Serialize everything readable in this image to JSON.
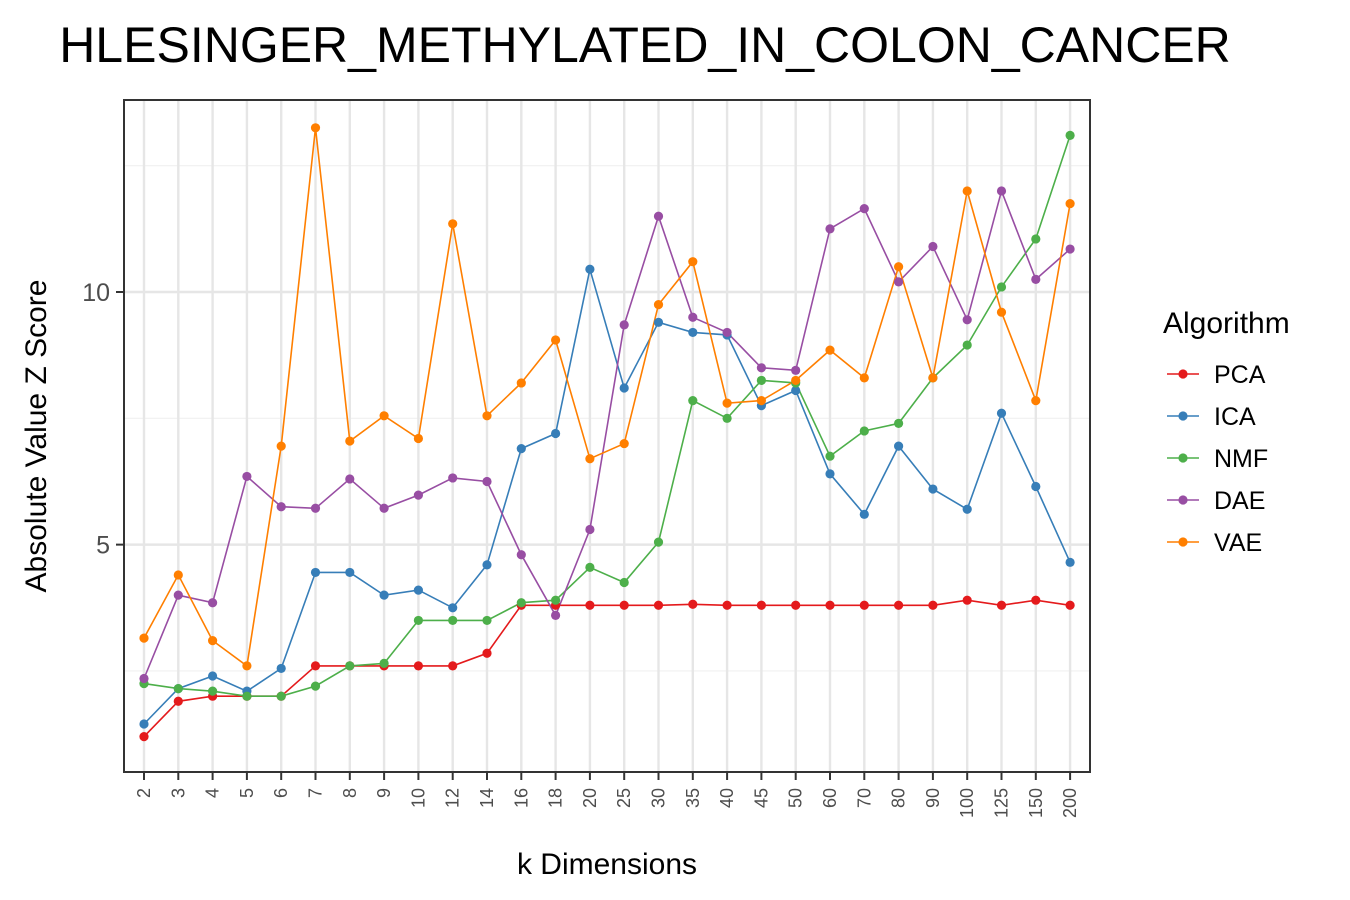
{
  "chart_data": {
    "type": "line",
    "title": "HLESINGER_METHYLATED_IN_COLON_CANCER",
    "xlabel": "k Dimensions",
    "ylabel": "Absolute Value Z Score",
    "categories": [
      "2",
      "3",
      "4",
      "5",
      "6",
      "7",
      "8",
      "9",
      "10",
      "12",
      "14",
      "16",
      "18",
      "20",
      "25",
      "30",
      "35",
      "40",
      "45",
      "50",
      "60",
      "70",
      "80",
      "90",
      "100",
      "125",
      "150",
      "200"
    ],
    "ylim": [
      0.5,
      13.8
    ],
    "yticks": [
      5,
      10
    ],
    "grid": true,
    "legend_title": "Algorithm",
    "legend_position": "right",
    "series": [
      {
        "name": "PCA",
        "color": "#E41A1C",
        "values": [
          1.2,
          1.9,
          2.0,
          2.0,
          2.0,
          2.6,
          2.6,
          2.6,
          2.6,
          2.6,
          2.85,
          3.8,
          3.8,
          3.8,
          3.8,
          3.8,
          3.82,
          3.8,
          3.8,
          3.8,
          3.8,
          3.8,
          3.8,
          3.8,
          3.9,
          3.8,
          3.9,
          3.8
        ]
      },
      {
        "name": "ICA",
        "color": "#377EB8",
        "values": [
          1.45,
          2.15,
          2.4,
          2.1,
          2.55,
          4.45,
          4.45,
          4.0,
          4.1,
          3.75,
          4.6,
          6.9,
          7.2,
          10.45,
          8.1,
          9.4,
          9.2,
          9.15,
          7.75,
          8.05,
          6.4,
          5.6,
          6.95,
          6.1,
          5.7,
          7.6,
          6.15,
          4.65
        ]
      },
      {
        "name": "NMF",
        "color": "#4DAF4A",
        "values": [
          2.25,
          2.15,
          2.1,
          2.0,
          2.0,
          2.2,
          2.6,
          2.65,
          3.5,
          3.5,
          3.5,
          3.85,
          3.9,
          4.55,
          4.25,
          5.05,
          7.85,
          7.5,
          8.25,
          8.2,
          6.75,
          7.25,
          7.4,
          8.3,
          8.95,
          10.1,
          11.05,
          13.1
        ]
      },
      {
        "name": "DAE",
        "color": "#984EA3",
        "values": [
          2.35,
          4.0,
          3.85,
          6.35,
          5.75,
          5.72,
          6.3,
          5.72,
          5.98,
          6.32,
          6.25,
          4.8,
          3.6,
          5.3,
          9.35,
          11.5,
          9.5,
          9.2,
          8.5,
          8.45,
          11.25,
          11.65,
          10.2,
          10.9,
          9.45,
          12.0,
          10.25,
          10.85
        ]
      },
      {
        "name": "VAE",
        "color": "#FF7F00",
        "values": [
          3.15,
          4.4,
          3.1,
          2.6,
          6.95,
          13.25,
          7.05,
          7.55,
          7.1,
          11.35,
          7.55,
          8.2,
          9.05,
          6.7,
          7.0,
          9.75,
          10.6,
          7.8,
          7.85,
          8.25,
          8.85,
          8.3,
          10.5,
          8.3,
          12.0,
          9.6,
          7.85,
          11.75
        ]
      }
    ]
  }
}
